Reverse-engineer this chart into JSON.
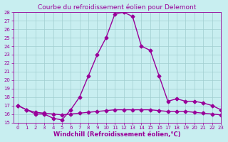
{
  "title": "Courbe du refroidissement éolien pour Delemont",
  "xlabel": "Windchill (Refroidissement éolien,°C)",
  "line1_x": [
    0,
    1,
    2,
    3,
    4,
    5,
    6,
    7,
    8,
    9,
    10,
    11,
    12,
    13,
    14,
    15,
    16,
    17,
    18,
    19,
    20,
    21,
    22,
    23
  ],
  "line1_y": [
    17.0,
    16.5,
    16.0,
    16.0,
    15.5,
    15.3,
    16.5,
    18.0,
    20.5,
    23.0,
    25.0,
    27.8,
    28.0,
    27.5,
    24.0,
    23.5,
    20.5,
    17.5,
    17.8,
    17.5,
    17.5,
    17.3,
    17.0,
    16.5
  ],
  "line2_x": [
    0,
    1,
    2,
    3,
    4,
    5,
    6,
    7,
    8,
    9,
    10,
    11,
    12,
    13,
    14,
    15,
    16,
    17,
    18,
    19,
    20,
    21,
    22,
    23
  ],
  "line2_y": [
    17.0,
    16.5,
    16.2,
    16.1,
    16.0,
    15.9,
    16.0,
    16.1,
    16.2,
    16.3,
    16.4,
    16.5,
    16.5,
    16.5,
    16.5,
    16.5,
    16.4,
    16.3,
    16.3,
    16.3,
    16.2,
    16.1,
    16.0,
    15.9
  ],
  "line_color": "#990099",
  "bg_color": "#c8eef0",
  "grid_color": "#a0cdd0",
  "ylim": [
    15,
    28
  ],
  "xlim": [
    -0.5,
    23
  ],
  "yticks": [
    15,
    16,
    17,
    18,
    19,
    20,
    21,
    22,
    23,
    24,
    25,
    26,
    27,
    28
  ],
  "xticks": [
    0,
    1,
    2,
    3,
    4,
    5,
    6,
    7,
    8,
    9,
    10,
    11,
    12,
    13,
    14,
    15,
    16,
    17,
    18,
    19,
    20,
    21,
    22,
    23
  ],
  "marker": "D",
  "markersize": 2.5,
  "linewidth": 1.0,
  "title_fontsize": 6.5,
  "xlabel_fontsize": 6.0,
  "tick_fontsize": 5.0
}
